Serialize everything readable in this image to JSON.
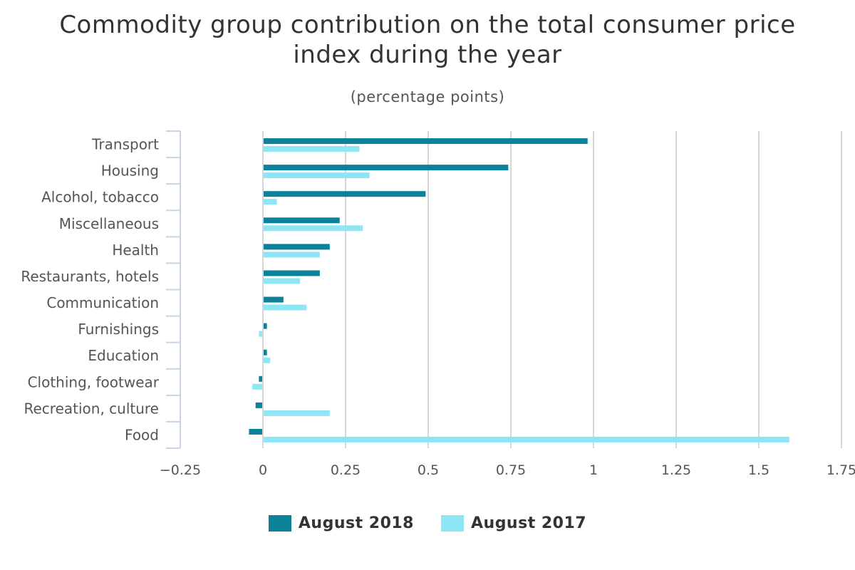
{
  "chart_data": {
    "type": "bar",
    "orientation": "horizontal",
    "title": "Commodity group contribution on the total consumer price index during the year",
    "subtitle": "(percentage points)",
    "categories": [
      "Transport",
      "Housing",
      "Alcohol, tobacco",
      "Miscellaneous",
      "Health",
      "Restaurants, hotels",
      "Communication",
      "Furnishings",
      "Education",
      "Clothing, footwear",
      "Recreation, culture",
      "Food"
    ],
    "series": [
      {
        "name": "August 2018",
        "color": "#0b8299",
        "values": [
          0.98,
          0.74,
          0.49,
          0.23,
          0.2,
          0.17,
          0.06,
          0.01,
          0.01,
          -0.01,
          -0.02,
          -0.04
        ]
      },
      {
        "name": "August 2017",
        "color": "#8ee6f4",
        "values": [
          0.29,
          0.32,
          0.04,
          0.3,
          0.17,
          0.11,
          0.13,
          -0.01,
          0.02,
          -0.03,
          0.2,
          1.59
        ]
      }
    ],
    "xlim": [
      -0.25,
      1.75
    ],
    "xticks": [
      "−0.25",
      "0",
      "0.25",
      "0.5",
      "0.75",
      "1",
      "1.25",
      "1.5",
      "1.75"
    ],
    "xtick_values": [
      -0.25,
      0,
      0.25,
      0.5,
      0.75,
      1,
      1.25,
      1.5,
      1.75
    ],
    "grid": true,
    "legend_position": "bottom-center"
  }
}
